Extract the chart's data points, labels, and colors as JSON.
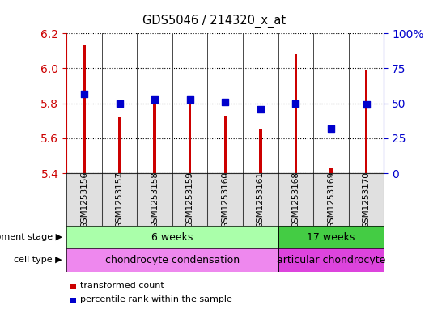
{
  "title": "GDS5046 / 214320_x_at",
  "samples": [
    "GSM1253156",
    "GSM1253157",
    "GSM1253158",
    "GSM1253159",
    "GSM1253160",
    "GSM1253161",
    "GSM1253168",
    "GSM1253169",
    "GSM1253170"
  ],
  "transformed_counts": [
    6.13,
    5.72,
    5.82,
    5.81,
    5.73,
    5.65,
    6.08,
    5.43,
    5.99
  ],
  "percentile_ranks": [
    57,
    50,
    53,
    53,
    51,
    46,
    50,
    32,
    49
  ],
  "ylim_left": [
    5.4,
    6.2
  ],
  "ylim_right": [
    0,
    100
  ],
  "yticks_left": [
    5.4,
    5.6,
    5.8,
    6.0,
    6.2
  ],
  "yticks_right": [
    0,
    25,
    50,
    75,
    100
  ],
  "bar_color": "#cc0000",
  "dot_color": "#0000cc",
  "bar_bottom": 5.4,
  "bar_width": 0.08,
  "groups": [
    {
      "label": "6 weeks",
      "start": 0,
      "end": 6,
      "color": "#aaffaa"
    },
    {
      "label": "17 weeks",
      "start": 6,
      "end": 9,
      "color": "#44cc44"
    }
  ],
  "cell_types": [
    {
      "label": "chondrocyte condensation",
      "start": 0,
      "end": 6,
      "color": "#ee88ee"
    },
    {
      "label": "articular chondrocyte",
      "start": 6,
      "end": 9,
      "color": "#dd44dd"
    }
  ],
  "dev_stage_label": "development stage",
  "cell_type_label": "cell type",
  "legend_bar_label": "transformed count",
  "legend_dot_label": "percentile rank within the sample",
  "grid_color": "black",
  "background_color": "white",
  "right_axis_color": "#0000cc",
  "left_axis_color": "#cc0000",
  "label_bg_color": "#cccccc"
}
